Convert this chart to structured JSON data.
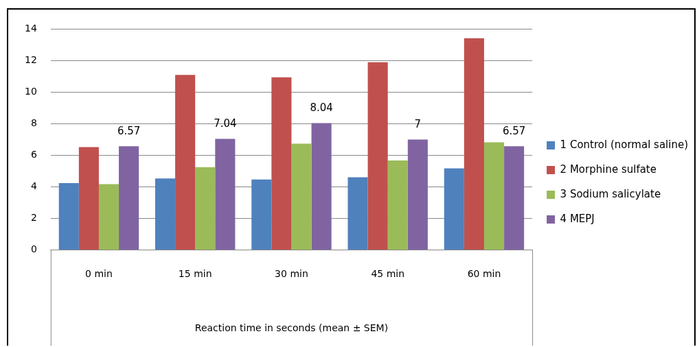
{
  "chart_data": {
    "type": "bar",
    "xlabel": "Reaction time in seconds (mean ± SEM)",
    "categories": [
      "0 min",
      "15 min",
      "30 min",
      "45 min",
      "60 min"
    ],
    "series": [
      {
        "name": "1 Control (normal saline)",
        "color": "#4f81bd",
        "values": [
          4.24,
          4.53,
          4.46,
          4.6,
          5.17
        ]
      },
      {
        "name": "2 Morphine sulfate",
        "color": "#c0504d",
        "values": [
          6.52,
          11.09,
          10.94,
          11.9,
          13.42
        ]
      },
      {
        "name": "3 Sodium salicylate",
        "color": "#9bbb59",
        "values": [
          4.17,
          5.25,
          6.74,
          5.67,
          6.82
        ]
      },
      {
        "name": "4 MEPJ",
        "color": "#8064a2",
        "values": [
          6.57,
          7.04,
          8.04,
          7,
          6.57
        ],
        "value_labels": [
          "6.57",
          "7.04",
          "8.04",
          "7",
          "6.57"
        ]
      }
    ],
    "ylim": [
      0,
      14
    ],
    "yticks": [
      0,
      2,
      4,
      6,
      8,
      10,
      12,
      14
    ],
    "grid": "y",
    "legend": "right"
  }
}
